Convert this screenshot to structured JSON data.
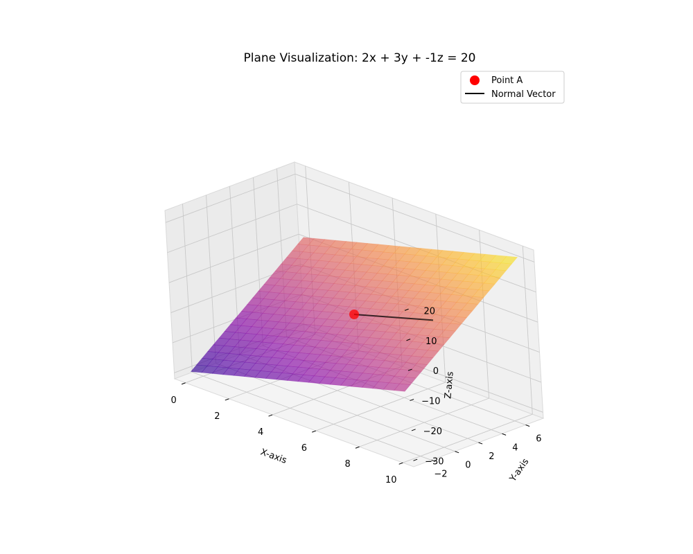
{
  "chart_data": {
    "type": "surface3d",
    "title": "Plane Visualization: 2x + 3y + -1z = 20",
    "xlabel": "X-axis",
    "ylabel": "Y-axis",
    "zlabel": "Z-axis",
    "xlim": [
      -0.5,
      10.5
    ],
    "ylim": [
      -3.5,
      7.5
    ],
    "zlim": [
      -32,
      24
    ],
    "x_ticks": [
      0,
      2,
      4,
      6,
      8,
      10
    ],
    "y_ticks": [
      -2,
      0,
      2,
      4,
      6
    ],
    "z_ticks": [
      -30,
      -20,
      -10,
      0,
      10,
      20
    ],
    "plane": {
      "equation": {
        "a": 2,
        "b": 3,
        "c": -1,
        "d": 20
      },
      "x_range": [
        0,
        10
      ],
      "y_range": [
        -3,
        7
      ],
      "colormap": "plasma"
    },
    "point": {
      "name": "Point A",
      "x": 5,
      "y": 2,
      "z": -4,
      "color": "#ff0000"
    },
    "normal_vector": {
      "name": "Normal Vector",
      "dx": 2,
      "dy": 3,
      "dz": -1,
      "color": "#000000"
    },
    "legend": {
      "position": "top-right",
      "entries": [
        {
          "label": "Point A"
        },
        {
          "label": "Normal Vector"
        }
      ]
    },
    "grid": true
  }
}
